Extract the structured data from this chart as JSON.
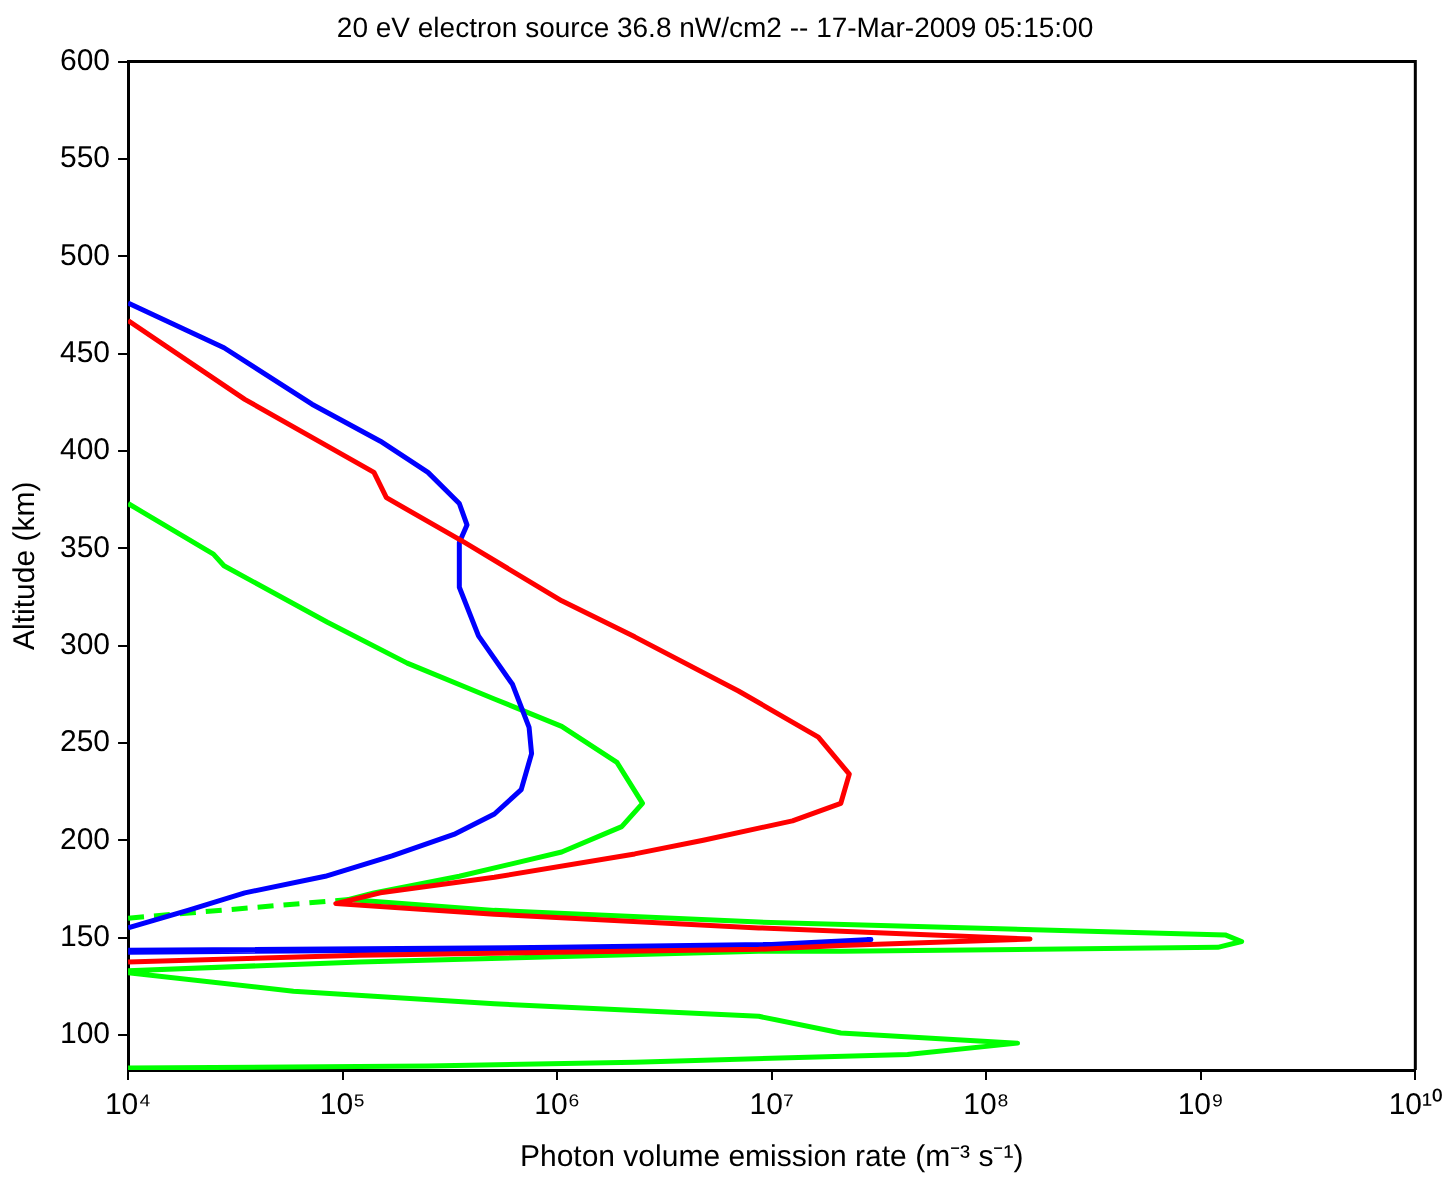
{
  "chart_data": {
    "type": "line",
    "title": "20 eV electron source 36.8 nW/cm2 -- 17-Mar-2009 05:15:00",
    "xlabel": "Photon volume emission rate (m⁻³ s⁻¹)",
    "ylabel": "Altitude (km)",
    "log": "x",
    "grid": false,
    "legend": false,
    "marker": "none",
    "line_style": "solid",
    "xlim": [
      10000.0,
      10000000000.0
    ],
    "xticks": [
      {
        "value": 10000.0,
        "label": "10⁴"
      },
      {
        "value": 100000.0,
        "label": "10⁵"
      },
      {
        "value": 1000000.0,
        "label": "10⁶"
      },
      {
        "value": 10000000.0,
        "label": "10⁷"
      },
      {
        "value": 100000000.0,
        "label": "10⁸"
      },
      {
        "value": 1000000000.0,
        "label": "10⁹"
      },
      {
        "value": 10000000000.0,
        "label": "10¹⁰"
      }
    ],
    "ylim": [
      82,
      600
    ],
    "yticks": [
      100,
      150,
      200,
      250,
      300,
      350,
      400,
      450,
      500,
      550,
      600
    ],
    "series": [
      {
        "color": "#ff0000",
        "x": [
          10000.0,
          35000.0,
          140000.0,
          160000.0,
          370000.0,
          1050000.0,
          2300000.0,
          7000000.0,
          16500000.0,
          23000000.0,
          21000000.0,
          12500000.0,
          4800000.0,
          2300000.0,
          510000.0,
          150000.0,
          93000.0,
          510000.0,
          8700000.0,
          160000000.0,
          21000000.0,
          8700000.0,
          120000.0,
          10000.0
        ],
        "values": [
          467,
          426.5,
          389,
          376,
          353,
          323,
          304.5,
          276.7,
          253,
          234,
          219,
          210,
          200,
          193,
          181,
          173,
          167.5,
          162,
          155,
          149.3,
          146,
          144,
          141,
          137.5
        ]
      },
      {
        "color": "#0000ff",
        "x": [
          10000.0,
          28000.0,
          72000.0,
          150000.0,
          250000.0,
          350000.0,
          380000.0,
          350000.0,
          350000.0,
          430000.0,
          620000.0,
          740000.0,
          760000.0,
          680000.0,
          510000.0,
          330000.0,
          170000.0,
          83000.0,
          35000.0,
          19000.0,
          10000.0,
          null,
          10000.0,
          1000000.0,
          10000000.0,
          29000000.0,
          20000000.0,
          1000000.0,
          10000.0
        ],
        "values": [
          476,
          453,
          424,
          405,
          389,
          373,
          362,
          353,
          330,
          305,
          280,
          258,
          244.5,
          226,
          213.5,
          203,
          192,
          181.5,
          173,
          164,
          155,
          null,
          143.5,
          145,
          146.5,
          149,
          147,
          144,
          142.5
        ]
      },
      {
        "color": "#00ff00",
        "x": [
          10000.0,
          25000.0,
          28000.0,
          85000.0,
          200000.0,
          510000.0,
          1050000.0,
          1900000.0,
          2500000.0,
          2000000.0,
          1050000.0,
          350000.0,
          140000.0,
          107000.0,
          510000.0,
          8700000.0,
          1300000000.0,
          1550000000.0,
          1200000000.0,
          21000000.0,
          8700000.0,
          120000.0,
          10000.0,
          10000.0,
          59000.0,
          510000.0,
          8700000.0,
          21000000.0,
          140000000.0,
          43000000.0,
          2300000.0,
          250000.0,
          10000.0
        ],
        "values": [
          373,
          347,
          341,
          312,
          291,
          272.6,
          258.5,
          240,
          219,
          207,
          194,
          181.5,
          173,
          169.6,
          164,
          158,
          151.4,
          148,
          145,
          143,
          143,
          137.5,
          133,
          132,
          122.5,
          116,
          109.6,
          101,
          95.8,
          90,
          86,
          84,
          83
        ]
      },
      {
        "color": "#00ff00",
        "line_style": "dashed",
        "x": [
          10000.0,
          107000.0
        ],
        "values": [
          160,
          169.6
        ]
      }
    ]
  }
}
